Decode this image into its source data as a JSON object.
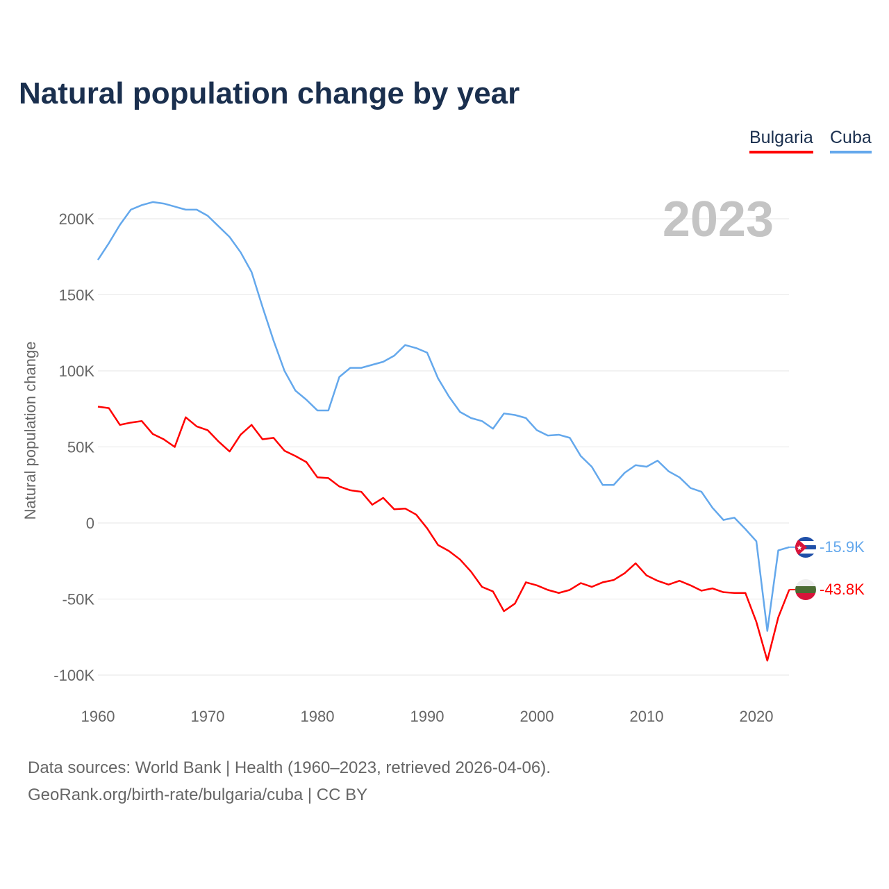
{
  "header": {
    "title": "Natural population change by year"
  },
  "legend": [
    {
      "label": "Bulgaria"
    },
    {
      "label": "Cuba"
    }
  ],
  "footer": {
    "line1": "Data sources: World Bank | Health (1960–2023, retrieved 2026-04-06).",
    "line2": "GeoRank.org/birth-rate/bulgaria/cuba | CC BY"
  },
  "chart_data": {
    "type": "line",
    "title": "Natural population change by year",
    "xlabel": "",
    "ylabel": "Natural population change",
    "year_label": "2023",
    "xlim": [
      1960,
      2023
    ],
    "ylim": [
      -100000,
      210000
    ],
    "x_ticks": [
      {
        "value": 1960,
        "label": "1960"
      },
      {
        "value": 1970,
        "label": "1970"
      },
      {
        "value": 1980,
        "label": "1980"
      },
      {
        "value": 1990,
        "label": "1990"
      },
      {
        "value": 2000,
        "label": "2000"
      },
      {
        "value": 2010,
        "label": "2010"
      },
      {
        "value": 2020,
        "label": "2020"
      }
    ],
    "y_ticks": [
      {
        "value": 200000,
        "label": "200K"
      },
      {
        "value": 150000,
        "label": "150K"
      },
      {
        "value": 100000,
        "label": "100K"
      },
      {
        "value": 50000,
        "label": "50K"
      },
      {
        "value": 0,
        "label": "0"
      },
      {
        "value": -50000,
        "label": "-50K"
      },
      {
        "value": -100000,
        "label": "-100K"
      }
    ],
    "grid": true,
    "legend_position": "top-right",
    "x_start": 1960,
    "series": [
      {
        "name": "Bulgaria",
        "color": "#ff0000",
        "end_label": "-43.8K",
        "flag": "bulgaria-flag",
        "values": [
          76.5,
          75.5,
          64.5,
          66,
          67,
          58.5,
          55,
          50,
          69.5,
          63.5,
          61,
          53.5,
          47,
          58,
          64.5,
          55,
          56,
          47.5,
          44,
          40,
          30,
          29.5,
          24,
          21.5,
          20.5,
          12,
          16.5,
          9,
          9.5,
          5.5,
          -3.5,
          -14.5,
          -18.5,
          -24,
          -32,
          -42,
          -45,
          -58,
          -53,
          -39,
          -41,
          -44,
          -46,
          -44,
          -39.5,
          -42,
          -39,
          -37.5,
          -33,
          -26.5,
          -34.5,
          -38,
          -40.5,
          -38,
          -41,
          -44.5,
          -43,
          -45.5,
          -46,
          -46,
          -65,
          -90.5,
          -62,
          -43.8
        ],
        "unit": "thousands"
      },
      {
        "name": "Cuba",
        "color": "#64a8ec",
        "end_label": "-15.9K",
        "flag": "cuba-flag",
        "values": [
          173,
          184,
          196,
          206,
          209,
          211,
          210,
          208,
          206,
          206,
          202,
          195,
          188,
          178,
          165,
          142,
          120,
          100,
          87,
          81,
          74,
          74,
          96,
          102,
          102,
          104,
          106,
          110,
          117,
          115,
          112,
          95,
          83,
          73,
          69,
          67,
          62,
          72,
          71,
          69,
          61,
          57.5,
          58,
          56,
          44,
          37,
          25,
          25,
          33,
          38,
          37,
          41,
          34,
          30,
          23,
          20.5,
          10,
          2,
          3.5,
          -4,
          -12,
          -71,
          -18,
          -15.9
        ],
        "unit": "thousands"
      }
    ]
  }
}
